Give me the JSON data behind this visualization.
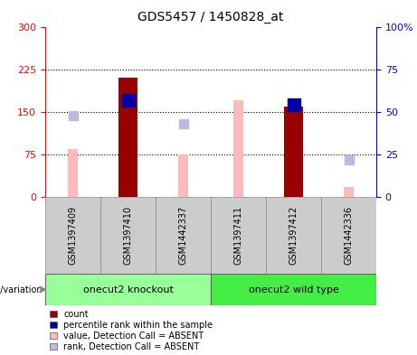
{
  "title": "GDS5457 / 1450828_at",
  "samples": [
    "GSM1397409",
    "GSM1397410",
    "GSM1442337",
    "GSM1397411",
    "GSM1397412",
    "GSM1442336"
  ],
  "count_values": [
    null,
    210,
    null,
    null,
    160,
    null
  ],
  "rank_pct_values": [
    null,
    57,
    null,
    null,
    54,
    null
  ],
  "absent_value_bars": [
    85,
    null,
    75,
    170,
    null,
    18
  ],
  "absent_rank_pct_dots": [
    48,
    null,
    43,
    null,
    null,
    22
  ],
  "ylim_left": [
    0,
    300
  ],
  "ylim_right": [
    0,
    100
  ],
  "yticks_left": [
    0,
    75,
    150,
    225,
    300
  ],
  "ytick_labels_left": [
    "0",
    "75",
    "150",
    "225",
    "300"
  ],
  "yticks_right": [
    0,
    25,
    50,
    75,
    100
  ],
  "ytick_labels_right": [
    "0",
    "25",
    "50",
    "75",
    "100%"
  ],
  "hlines": [
    75,
    150,
    225
  ],
  "group1_label": "onecut2 knockout",
  "group2_label": "onecut2 wild type",
  "color_count": "#990000",
  "color_rank": "#0000aa",
  "color_absent_value": "#ffbbbb",
  "color_absent_rank": "#bbbbdd",
  "color_group1": "#99ff99",
  "color_group2": "#44ee44",
  "color_gray_box": "#cccccc",
  "bar_width": 0.35,
  "absent_bar_width": 0.18,
  "marker_size": 60,
  "legend_items": [
    "count",
    "percentile rank within the sample",
    "value, Detection Call = ABSENT",
    "rank, Detection Call = ABSENT"
  ],
  "legend_colors": [
    "#990000",
    "#0000aa",
    "#ffbbbb",
    "#bbbbdd"
  ],
  "fig_width": 4.61,
  "fig_height": 3.93,
  "dpi": 100
}
